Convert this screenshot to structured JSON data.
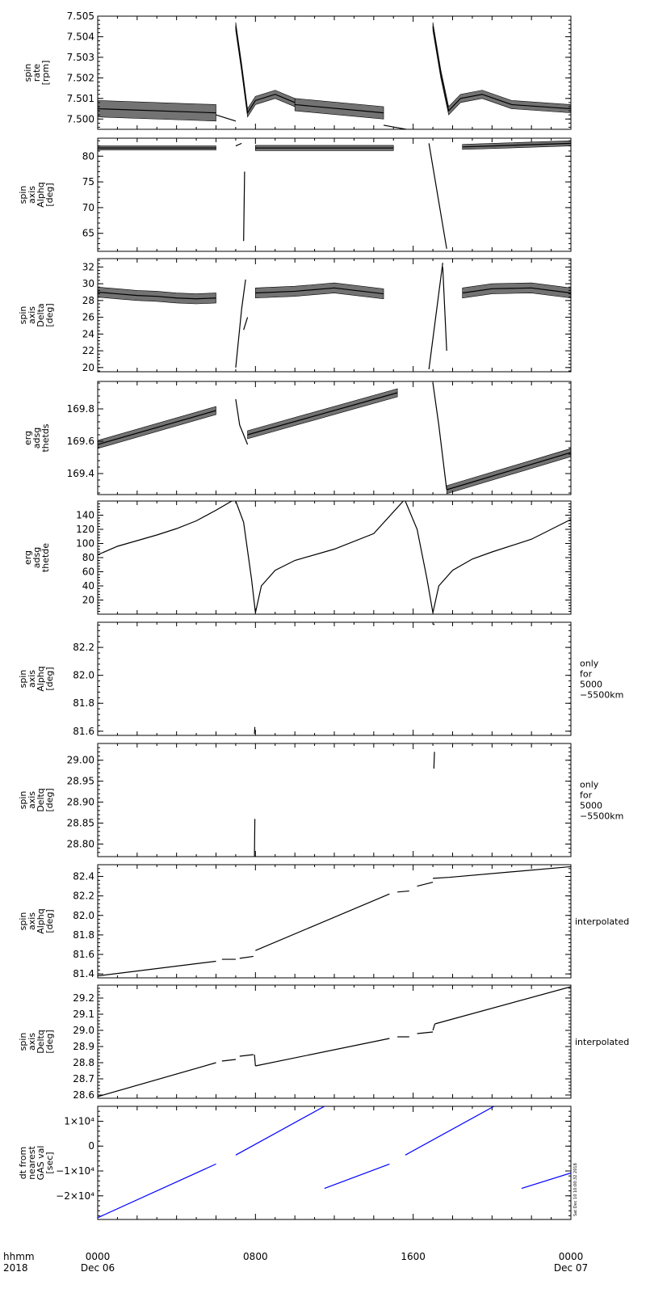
{
  "footer": {
    "left_top": "hhmm",
    "left_bottom": "2018",
    "ticks": [
      {
        "top": "0000",
        "bottom": "Dec 06"
      },
      {
        "top": "0800",
        "bottom": ""
      },
      {
        "top": "1600",
        "bottom": ""
      },
      {
        "top": "0000",
        "bottom": "Dec 07"
      }
    ]
  },
  "stamp": "Sat Dec 10 10:00:32 2018",
  "chart_data": [
    {
      "type": "scatter",
      "ylabel": [
        "spin",
        "rate",
        "[rpm]"
      ],
      "ylim": [
        7.4995,
        7.505
      ],
      "yticks": [
        7.5,
        7.501,
        7.502,
        7.503,
        7.504,
        7.505
      ],
      "ytick_labels": [
        "7.500",
        "7.501",
        "7.502",
        "7.503",
        "7.504",
        "7.505"
      ],
      "side_label": [],
      "color": "#000000",
      "segments": [
        {
          "x": [
            0,
            6
          ],
          "y": [
            7.5005,
            7.5003
          ],
          "band": 0.0008
        },
        {
          "x": [
            6,
            7.0
          ],
          "y": [
            7.5002,
            7.4999
          ]
        },
        {
          "x": [
            7.0,
            7.3,
            7.6,
            8.0,
            9.0,
            10.0
          ],
          "y": [
            7.5045,
            7.5025,
            7.5003,
            7.5009,
            7.5012,
            7.5008
          ],
          "band": 0.0004
        },
        {
          "x": [
            10.0,
            14.5
          ],
          "y": [
            7.5007,
            7.5003
          ],
          "band": 0.0006
        },
        {
          "x": [
            14.5,
            16.8
          ],
          "y": [
            7.4997,
            7.4993
          ]
        },
        {
          "x": [
            17.0,
            17.4,
            17.8,
            18.4,
            19.5,
            21.0,
            24.0
          ],
          "y": [
            7.5045,
            7.5022,
            7.5004,
            7.501,
            7.5012,
            7.5007,
            7.5005
          ],
          "band": 0.0004
        }
      ]
    },
    {
      "type": "scatter",
      "ylabel": [
        "spin",
        "axis",
        "Alphq",
        "[deg]"
      ],
      "ylim": [
        61.5,
        83.5
      ],
      "yticks": [
        65,
        70,
        75,
        80
      ],
      "ytick_labels": [
        "65",
        "70",
        "75",
        "80"
      ],
      "side_label": [],
      "color": "#000000",
      "segments": [
        {
          "x": [
            0,
            6
          ],
          "y": [
            81.6,
            81.6
          ],
          "band": 0.8
        },
        {
          "x": [
            7.0,
            7.3
          ],
          "y": [
            82.0,
            82.5
          ]
        },
        {
          "x": [
            7.4,
            7.45
          ],
          "y": [
            63.5,
            77.0
          ]
        },
        {
          "x": [
            8.0,
            15.0
          ],
          "y": [
            81.6,
            81.6
          ],
          "band": 1.0
        },
        {
          "x": [
            16.8,
            17.7
          ],
          "y": [
            82.5,
            62.0
          ]
        },
        {
          "x": [
            18.5,
            24.0
          ],
          "y": [
            81.8,
            82.5
          ],
          "band": 1.0
        }
      ]
    },
    {
      "type": "scatter",
      "ylabel": [
        "spin",
        "axis",
        "Delta",
        "[deg]"
      ],
      "ylim": [
        19.5,
        33.0
      ],
      "yticks": [
        20,
        22,
        24,
        26,
        28,
        30,
        32
      ],
      "ytick_labels": [
        "20",
        "22",
        "24",
        "26",
        "28",
        "30",
        "32"
      ],
      "side_label": [],
      "color": "#000000",
      "segments": [
        {
          "x": [
            0,
            1,
            2,
            3,
            4,
            5,
            6
          ],
          "y": [
            29.0,
            28.8,
            28.6,
            28.5,
            28.3,
            28.2,
            28.3
          ],
          "band": 1.2
        },
        {
          "x": [
            7.0,
            7.3,
            7.5
          ],
          "y": [
            20.0,
            27.0,
            30.5
          ]
        },
        {
          "x": [
            7.4,
            7.6
          ],
          "y": [
            24.5,
            26.0
          ]
        },
        {
          "x": [
            8.0,
            10.0,
            12.0,
            14.5
          ],
          "y": [
            28.9,
            29.1,
            29.5,
            28.8
          ],
          "band": 1.2
        },
        {
          "x": [
            16.8,
            17.5
          ],
          "y": [
            19.8,
            32.5
          ]
        },
        {
          "x": [
            17.5,
            17.7
          ],
          "y": [
            32.0,
            22.0
          ]
        },
        {
          "x": [
            18.5,
            20.0,
            22.0,
            24.0
          ],
          "y": [
            28.9,
            29.4,
            29.5,
            28.9
          ],
          "band": 1.2
        }
      ]
    },
    {
      "type": "scatter",
      "ylabel": [
        "erg",
        "adsg",
        "thetds"
      ],
      "ylim": [
        169.27,
        169.97
      ],
      "yticks": [
        169.4,
        169.6,
        169.8
      ],
      "ytick_labels": [
        "169.4",
        "169.6",
        "169.8"
      ],
      "side_label": [],
      "color": "#000000",
      "segments": [
        {
          "x": [
            0,
            6
          ],
          "y": [
            169.58,
            169.79
          ],
          "band": 0.05
        },
        {
          "x": [
            7.0,
            7.2,
            7.6
          ],
          "y": [
            169.86,
            169.7,
            169.58
          ]
        },
        {
          "x": [
            7.6,
            15.2
          ],
          "y": [
            169.64,
            169.9
          ],
          "band": 0.05
        },
        {
          "x": [
            17.0,
            17.3,
            17.7
          ],
          "y": [
            169.96,
            169.7,
            169.3
          ]
        },
        {
          "x": [
            17.7,
            24.0
          ],
          "y": [
            169.3,
            169.53
          ],
          "band": 0.05
        }
      ]
    },
    {
      "type": "line",
      "ylabel": [
        "erg",
        "adsg",
        "thetde"
      ],
      "ylim": [
        0,
        160
      ],
      "yticks": [
        20,
        40,
        60,
        80,
        100,
        120,
        140
      ],
      "ytick_labels": [
        "20",
        "40",
        "60",
        "80",
        "100",
        "120",
        "140"
      ],
      "side_label": [],
      "color": "#000000",
      "segments": [
        {
          "x": [
            0,
            1,
            2,
            3,
            4,
            5,
            6,
            6.8
          ],
          "y": [
            84,
            96,
            104,
            112,
            121,
            132,
            147,
            160
          ]
        },
        {
          "x": [
            7.0,
            7.4,
            7.8,
            8.0
          ],
          "y": [
            160,
            130,
            50,
            2
          ]
        },
        {
          "x": [
            8.0,
            8.3,
            9.0,
            10.0,
            12.0,
            14.0,
            15.5
          ],
          "y": [
            2,
            40,
            62,
            76,
            92,
            114,
            160
          ]
        },
        {
          "x": [
            15.6,
            16.2,
            16.7,
            17.0
          ],
          "y": [
            160,
            120,
            50,
            2
          ]
        },
        {
          "x": [
            17.0,
            17.3,
            18.0,
            19.0,
            20.0,
            22.0,
            24.0
          ],
          "y": [
            2,
            40,
            62,
            78,
            88,
            106,
            134
          ]
        }
      ]
    },
    {
      "type": "scatter",
      "ylabel": [
        "spin",
        "axis",
        "Alphq",
        "[deg]"
      ],
      "ylim": [
        81.57,
        82.38
      ],
      "yticks": [
        81.6,
        81.8,
        82.0,
        82.2
      ],
      "ytick_labels": [
        "81.6",
        "81.8",
        "82.0",
        "82.2"
      ],
      "side_label": [
        "only",
        "for",
        "5000",
        "−5500km"
      ],
      "color": "#000000",
      "segments": [
        {
          "x": [
            7.95,
            7.97
          ],
          "y": [
            81.58,
            81.63
          ]
        },
        {
          "x": [
            17.05,
            17.06
          ],
          "y": [
            82.37,
            82.36
          ]
        }
      ]
    },
    {
      "type": "scatter",
      "ylabel": [
        "spin",
        "axis",
        "Deltq",
        "[deg]"
      ],
      "ylim": [
        28.77,
        29.04
      ],
      "yticks": [
        28.8,
        28.85,
        28.9,
        28.95,
        29.0
      ],
      "ytick_labels": [
        "28.80",
        "28.85",
        "28.90",
        "28.95",
        "29.00"
      ],
      "side_label": [
        "only",
        "for",
        "5000",
        "−5500km"
      ],
      "color": "#000000",
      "segments": [
        {
          "x": [
            7.95,
            7.97
          ],
          "y": [
            28.77,
            28.86
          ]
        },
        {
          "x": [
            17.05,
            17.08
          ],
          "y": [
            28.98,
            29.02
          ]
        }
      ]
    },
    {
      "type": "line",
      "ylabel": [
        "spin",
        "axis",
        "Alphq",
        "[deg]"
      ],
      "ylim": [
        81.36,
        82.52
      ],
      "yticks": [
        81.4,
        81.6,
        81.8,
        82.0,
        82.2,
        82.4
      ],
      "ytick_labels": [
        "81.4",
        "81.6",
        "81.8",
        "82.0",
        "82.2",
        "82.4"
      ],
      "side_label": [
        "interpolated"
      ],
      "color": "#000000",
      "segments": [
        {
          "x": [
            0,
            6
          ],
          "y": [
            81.38,
            81.53
          ]
        },
        {
          "x": [
            6.3,
            7.0
          ],
          "y": [
            81.55,
            81.55
          ]
        },
        {
          "x": [
            7.2,
            7.9
          ],
          "y": [
            81.56,
            81.58
          ]
        },
        {
          "x": [
            8.0,
            14.8
          ],
          "y": [
            81.64,
            82.22
          ]
        },
        {
          "x": [
            15.2,
            15.8
          ],
          "y": [
            82.24,
            82.25
          ]
        },
        {
          "x": [
            16.2,
            17.0
          ],
          "y": [
            82.3,
            82.34
          ]
        },
        {
          "x": [
            17.0,
            17.8
          ],
          "y": [
            82.38,
            82.39
          ]
        },
        {
          "x": [
            17.8,
            24.0
          ],
          "y": [
            82.39,
            82.5
          ]
        }
      ]
    },
    {
      "type": "line",
      "ylabel": [
        "spin",
        "axis",
        "Deltq",
        "[deg]"
      ],
      "ylim": [
        28.58,
        29.28
      ],
      "yticks": [
        28.6,
        28.7,
        28.8,
        28.9,
        29.0,
        29.1,
        29.2
      ],
      "ytick_labels": [
        "28.6",
        "28.7",
        "28.8",
        "28.9",
        "29.0",
        "29.1",
        "29.2"
      ],
      "side_label": [
        "interpolated"
      ],
      "color": "#000000",
      "segments": [
        {
          "x": [
            0,
            6
          ],
          "y": [
            28.59,
            28.8
          ]
        },
        {
          "x": [
            6.3,
            7.0
          ],
          "y": [
            28.81,
            28.82
          ]
        },
        {
          "x": [
            7.2,
            7.9
          ],
          "y": [
            28.84,
            28.85
          ]
        },
        {
          "x": [
            7.95,
            8.0
          ],
          "y": [
            28.85,
            28.78
          ]
        },
        {
          "x": [
            8.0,
            14.8
          ],
          "y": [
            28.78,
            28.95
          ]
        },
        {
          "x": [
            15.2,
            15.8
          ],
          "y": [
            28.96,
            28.96
          ]
        },
        {
          "x": [
            16.2,
            17.0
          ],
          "y": [
            28.98,
            28.99
          ]
        },
        {
          "x": [
            17.0,
            17.1
          ],
          "y": [
            29.0,
            29.04
          ]
        },
        {
          "x": [
            17.1,
            24.0
          ],
          "y": [
            29.04,
            29.27
          ]
        }
      ]
    },
    {
      "type": "line",
      "ylabel": [
        "dt from",
        "nearest",
        "GAS val",
        "[sec]"
      ],
      "ylim": [
        -29500,
        16000
      ],
      "yticks": [
        -20000,
        -10000,
        0,
        10000
      ],
      "ytick_labels": [
        "−2×10⁴",
        "−1×10⁴",
        "0",
        "1×10⁴"
      ],
      "side_label": [],
      "color": "#0000ff",
      "segments": [
        {
          "x": [
            0,
            6.0
          ],
          "y": [
            -28800,
            -7200
          ]
        },
        {
          "x": [
            7.0,
            11.5
          ],
          "y": [
            -3600,
            16000
          ]
        },
        {
          "x": [
            11.5,
            14.8
          ],
          "y": [
            -17000,
            -7200
          ]
        },
        {
          "x": [
            15.6,
            20.1
          ],
          "y": [
            -3600,
            16000
          ]
        },
        {
          "x": [
            21.5,
            24.0
          ],
          "y": [
            -17000,
            -10800
          ]
        }
      ]
    }
  ]
}
